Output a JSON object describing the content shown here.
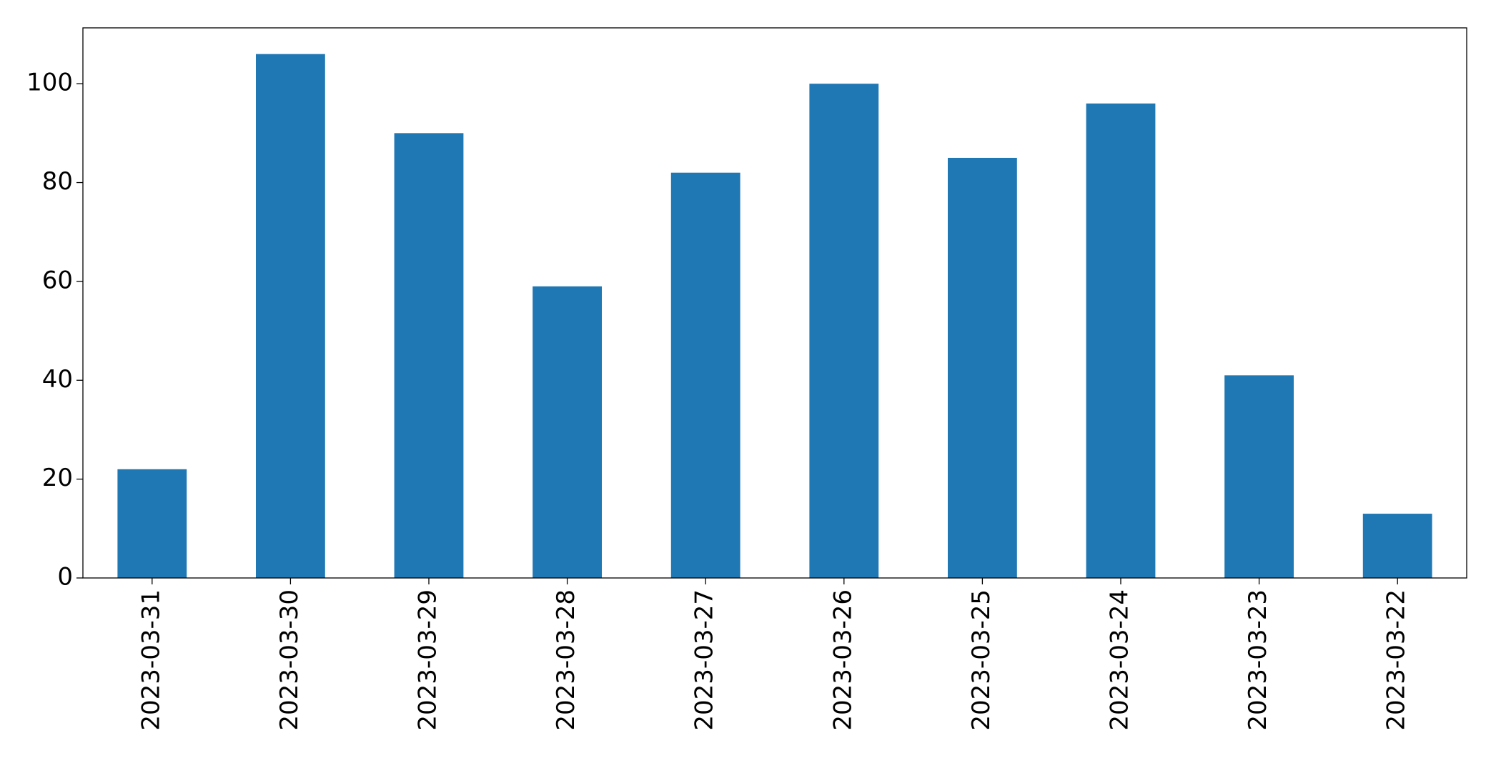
{
  "chart_data": {
    "type": "bar",
    "categories": [
      "2023-03-31",
      "2023-03-30",
      "2023-03-29",
      "2023-03-28",
      "2023-03-27",
      "2023-03-26",
      "2023-03-25",
      "2023-03-24",
      "2023-03-23",
      "2023-03-22"
    ],
    "values": [
      22,
      106,
      90,
      59,
      82,
      100,
      85,
      96,
      41,
      13
    ],
    "color": "#1f77b4",
    "ylim": [
      0,
      111.3
    ],
    "yticks": [
      0,
      20,
      40,
      60,
      80,
      100
    ],
    "grid": false
  }
}
